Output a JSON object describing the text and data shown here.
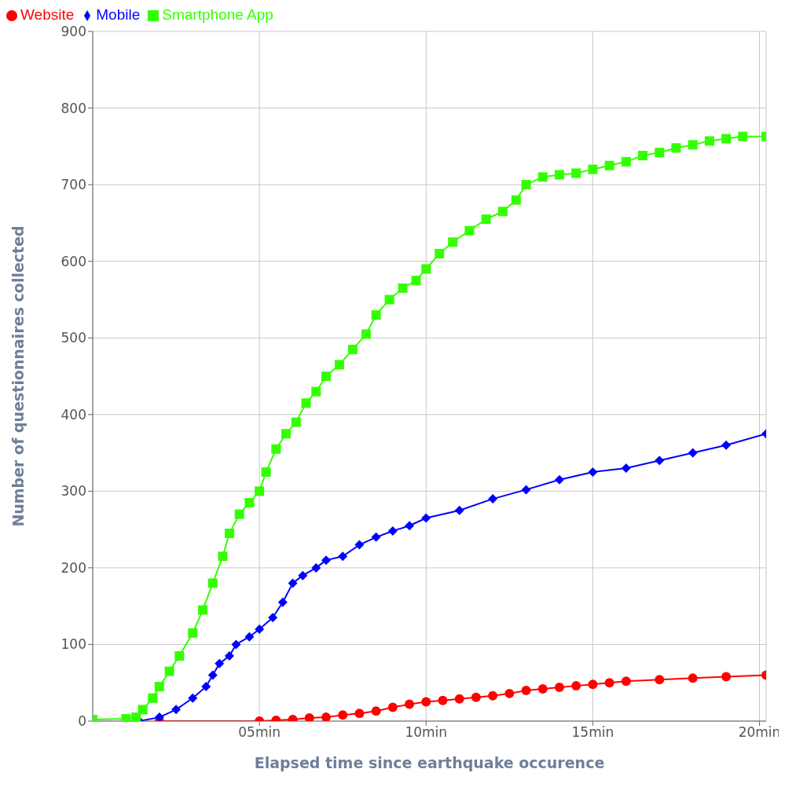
{
  "chart_data": {
    "type": "line",
    "xlabel": "Elapsed time since earthquake occurence",
    "ylabel": "Number of questionnaires collected",
    "xlim": [
      0,
      20.2
    ],
    "xticks": [
      {
        "value": 5,
        "label": "05min"
      },
      {
        "value": 10,
        "label": "10min"
      },
      {
        "value": 15,
        "label": "15min"
      },
      {
        "value": 20,
        "label": "20min"
      }
    ],
    "ylim": [
      0,
      900
    ],
    "yticks": [
      0,
      100,
      200,
      300,
      400,
      500,
      600,
      700,
      800,
      900
    ],
    "grid": true,
    "legend": "top left",
    "series": [
      {
        "name": "Website",
        "color": "#ff0000",
        "marker": "circle",
        "x": [
          2,
          5,
          5.5,
          6,
          6.5,
          7,
          7.5,
          8,
          8.5,
          9,
          9.5,
          10,
          10.5,
          11,
          11.5,
          12,
          12.5,
          13,
          13.5,
          14,
          14.5,
          15,
          15.5,
          16,
          17,
          18,
          19,
          20.2
        ],
        "values": [
          0,
          0,
          1,
          2,
          4,
          5,
          8,
          10,
          13,
          18,
          22,
          25,
          27,
          29,
          31,
          33,
          36,
          40,
          42,
          44,
          46,
          48,
          50,
          52,
          54,
          56,
          58,
          60
        ]
      },
      {
        "name": "Mobile",
        "color": "#0000ff",
        "marker": "diamond",
        "x": [
          1.4,
          2,
          2.5,
          3,
          3.4,
          3.6,
          3.8,
          4.1,
          4.3,
          4.7,
          5,
          5.4,
          5.7,
          6,
          6.3,
          6.7,
          7,
          7.5,
          8,
          8.5,
          9,
          9.5,
          10,
          11,
          12,
          13,
          14,
          15,
          16,
          17,
          18,
          19,
          20.2
        ],
        "values": [
          0,
          5,
          15,
          30,
          45,
          60,
          75,
          85,
          100,
          110,
          120,
          135,
          155,
          180,
          190,
          200,
          210,
          215,
          230,
          240,
          248,
          255,
          265,
          275,
          290,
          302,
          315,
          325,
          330,
          340,
          350,
          360,
          375
        ]
      },
      {
        "name": "Smartphone App",
        "color": "#33ff00",
        "marker": "square",
        "x": [
          0,
          1,
          1.3,
          1.5,
          1.8,
          2,
          2.3,
          2.6,
          3,
          3.3,
          3.6,
          3.9,
          4.1,
          4.4,
          4.7,
          5,
          5.2,
          5.5,
          5.8,
          6.1,
          6.4,
          6.7,
          7,
          7.4,
          7.8,
          8.2,
          8.5,
          8.9,
          9.3,
          9.7,
          10,
          10.4,
          10.8,
          11.3,
          11.8,
          12.3,
          12.7,
          13,
          13.5,
          14,
          14.5,
          15,
          15.5,
          16,
          16.5,
          17,
          17.5,
          18,
          18.5,
          19,
          19.5,
          20.2
        ],
        "values": [
          2,
          3,
          5,
          15,
          30,
          45,
          65,
          85,
          115,
          145,
          180,
          215,
          245,
          270,
          285,
          300,
          325,
          355,
          375,
          390,
          415,
          430,
          450,
          465,
          485,
          505,
          530,
          550,
          565,
          575,
          590,
          610,
          625,
          640,
          655,
          665,
          680,
          700,
          710,
          713,
          715,
          720,
          725,
          730,
          738,
          742,
          748,
          752,
          757,
          760,
          763,
          763
        ]
      }
    ]
  }
}
